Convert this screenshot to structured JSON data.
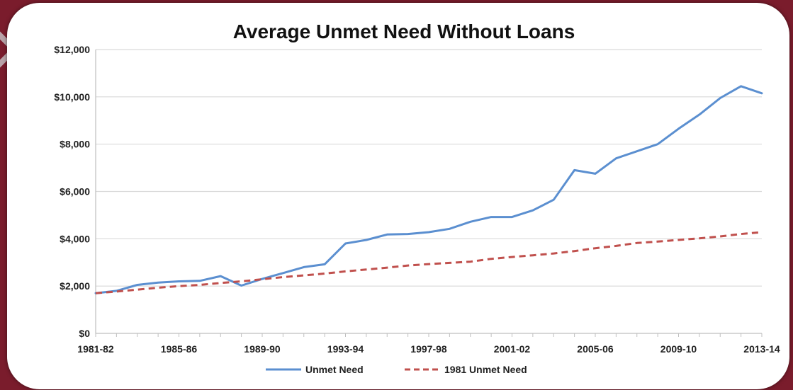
{
  "chart_data": {
    "type": "line",
    "title": "Average Unmet Need Without Loans",
    "xlabel": "",
    "ylabel": "",
    "ylim": [
      0,
      12000
    ],
    "y_ticks": [
      "$0",
      "$2,000",
      "$4,000",
      "$6,000",
      "$8,000",
      "$10,000",
      "$12,000"
    ],
    "x_tick_labels": [
      "1981-82",
      "1985-86",
      "1989-90",
      "1993-94",
      "1997-98",
      "2001-02",
      "2005-06",
      "2009-10",
      "2013-14"
    ],
    "x_tick_positions": [
      0,
      4,
      8,
      12,
      16,
      20,
      24,
      28,
      32
    ],
    "x_count": 33,
    "grid": true,
    "legend_position": "bottom",
    "series": [
      {
        "name": "Unmet Need",
        "color": "#5b8fd0",
        "style": "solid",
        "values": [
          1700,
          1800,
          2050,
          2150,
          2200,
          2220,
          2420,
          2020,
          2300,
          2550,
          2800,
          2920,
          3800,
          3950,
          4180,
          4200,
          4280,
          4420,
          4720,
          4920,
          4920,
          5200,
          5650,
          6900,
          6750,
          7400,
          7700,
          8000,
          8650,
          9250,
          9950,
          10450,
          10150
        ]
      },
      {
        "name": "1981 Unmet Need",
        "color": "#c0504d",
        "style": "dashed",
        "values": [
          1700,
          1770,
          1850,
          1930,
          2000,
          2050,
          2130,
          2200,
          2290,
          2380,
          2450,
          2530,
          2620,
          2700,
          2780,
          2870,
          2930,
          2980,
          3030,
          3150,
          3230,
          3300,
          3380,
          3480,
          3600,
          3700,
          3820,
          3880,
          3950,
          4020,
          4100,
          4200,
          4280
        ]
      }
    ]
  }
}
